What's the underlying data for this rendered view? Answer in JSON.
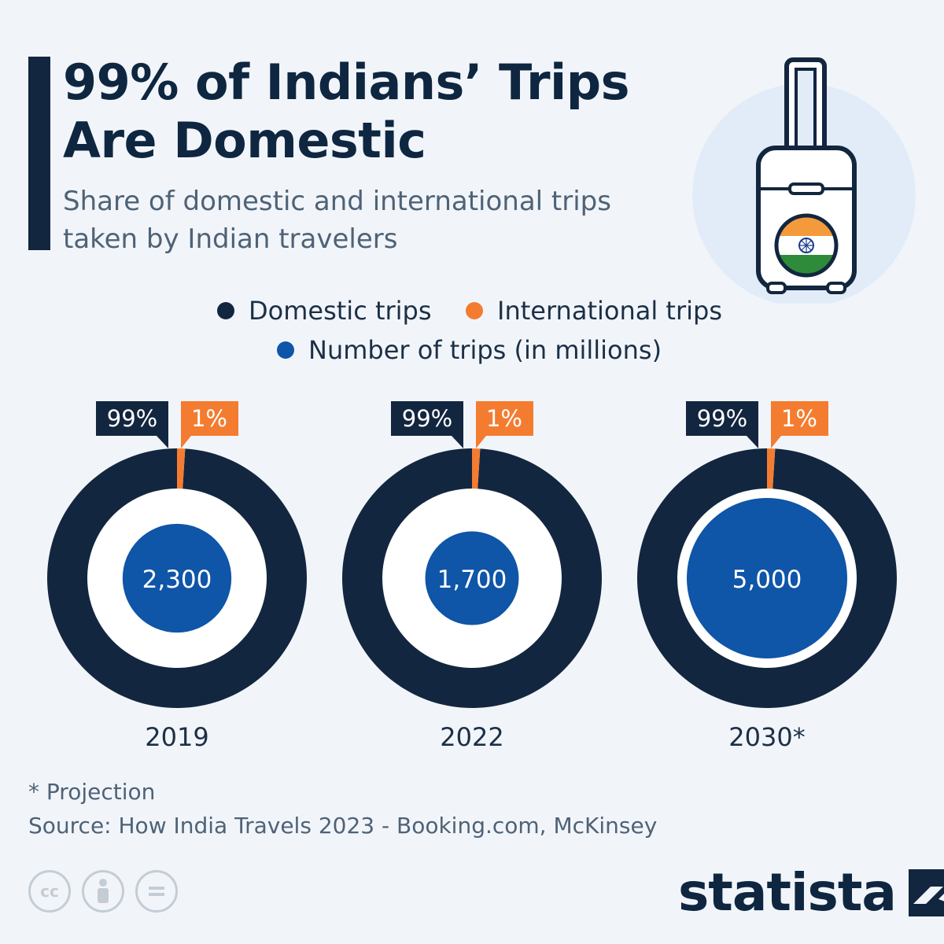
{
  "header": {
    "title": "99% of Indians’ Trips Are Domestic",
    "subtitle": "Share of domestic and international trips taken by Indian travelers"
  },
  "legend": {
    "domestic": "Domestic trips",
    "international": "International trips",
    "trips": "Number of trips (in millions)"
  },
  "colors": {
    "domestic": "#13263f",
    "international": "#f47c30",
    "trips": "#0f55a8",
    "background": "#f1f5fa",
    "ring_inner": "#ffffff"
  },
  "chart_data": {
    "type": "donut",
    "categories": [
      "2019",
      "2022",
      "2030*"
    ],
    "series": [
      {
        "name": "Domestic trips",
        "values": [
          99,
          99,
          99
        ],
        "labels": [
          "99%",
          "99%",
          "99%"
        ]
      },
      {
        "name": "International trips",
        "values": [
          1,
          1,
          1
        ],
        "labels": [
          "1%",
          "1%",
          "1%"
        ]
      },
      {
        "name": "Number of trips (in millions)",
        "values": [
          2300,
          1700,
          5000
        ],
        "labels": [
          "2,300",
          "1,700",
          "5,000"
        ]
      }
    ],
    "unit": "%"
  },
  "footer": {
    "note": "* Projection",
    "source": "Source: How India Travels 2023 - Booking.com, McKinsey",
    "brand": "statista",
    "icons": [
      "cc-icon",
      "attribution-icon",
      "no-derivatives-icon"
    ]
  },
  "illustration": {
    "icon": "suitcase-with-india-flag-icon"
  }
}
